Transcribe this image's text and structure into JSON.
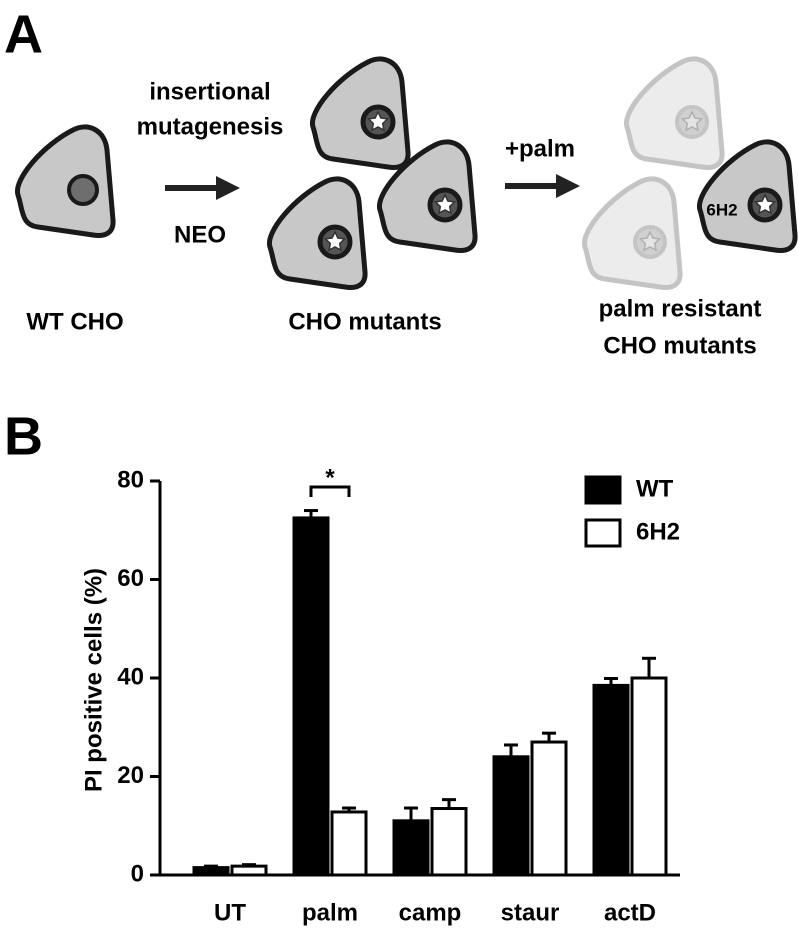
{
  "panel_a": {
    "label": "A",
    "arrow1_top": [
      "insertional",
      "mutagenesis"
    ],
    "arrow1_bottom": "NEO",
    "arrow2_top": "+palm",
    "wt_label": "WT CHO",
    "mutants_label": "CHO mutants",
    "resistant_label": [
      "palm resistant",
      "CHO mutants"
    ],
    "clone_label": "6H2"
  },
  "panel_b_label": "B",
  "chart_data": {
    "type": "bar",
    "ylabel": "PI positive cells (%)",
    "categories": [
      "UT",
      "palm",
      "camp",
      "staur",
      "actD"
    ],
    "series": [
      {
        "name": "WT",
        "color": "#000000",
        "values": [
          1.5,
          72.5,
          11,
          24,
          38.5
        ],
        "errors": [
          0.3,
          1.5,
          2.6,
          2.4,
          1.4
        ]
      },
      {
        "name": "6H2",
        "color": "#ffffff",
        "values": [
          1.8,
          12.8,
          13.5,
          27,
          40
        ],
        "errors": [
          0.3,
          0.8,
          1.8,
          1.8,
          4
        ]
      }
    ],
    "ylim": [
      0,
      80
    ],
    "yticks": [
      0,
      20,
      40,
      60,
      80
    ],
    "annotation": "*",
    "legend": "upper right"
  }
}
